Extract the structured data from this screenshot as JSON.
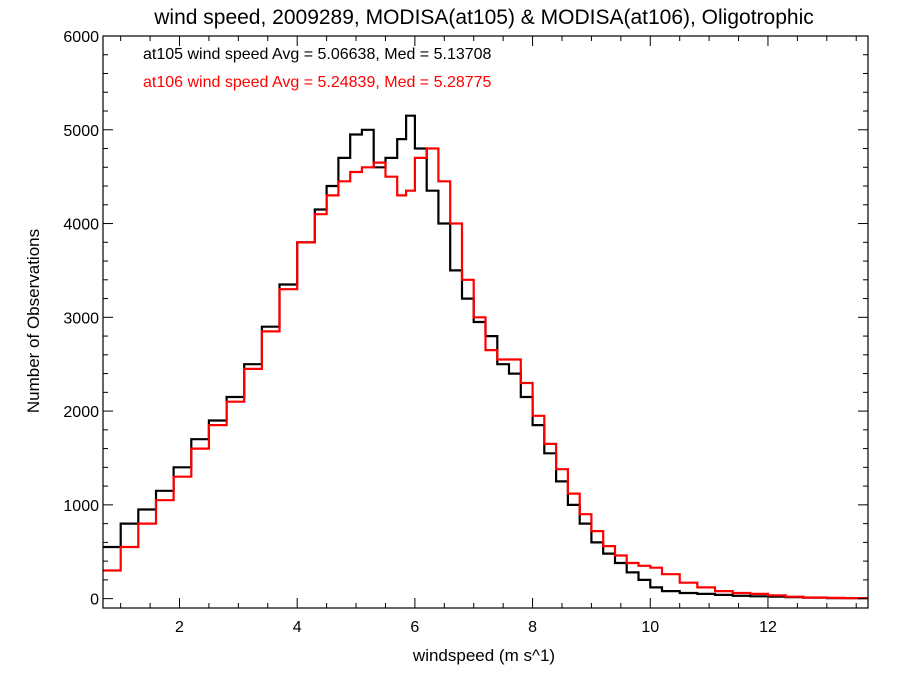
{
  "chart_data": {
    "type": "line",
    "title": "wind speed, 2009289, MODISA(at105) & MODISA(at106), Oligotrophic",
    "xlabel": "windspeed (m s^1)",
    "ylabel": "Number of Observations",
    "xlim": [
      0.7,
      13.7
    ],
    "ylim": [
      -100,
      6000
    ],
    "xticks": [
      2,
      4,
      6,
      8,
      10,
      12
    ],
    "yticks": [
      0,
      1000,
      2000,
      3000,
      4000,
      5000,
      6000
    ],
    "grid": false,
    "legend_position": "top-left",
    "annotations": [
      {
        "text": "at105 wind speed Avg = 5.06638, Med = 5.13708",
        "color": "#000000"
      },
      {
        "text": "at106 wind speed Avg = 5.24839, Med = 5.28775",
        "color": "#ff0000"
      }
    ],
    "series": [
      {
        "color": "#000000",
        "x": [
          0.7,
          1.0,
          1.3,
          1.6,
          1.9,
          2.2,
          2.5,
          2.8,
          3.1,
          3.4,
          3.7,
          4.0,
          4.3,
          4.5,
          4.7,
          4.9,
          5.1,
          5.3,
          5.5,
          5.7,
          5.85,
          6.0,
          6.2,
          6.4,
          6.6,
          6.8,
          7.0,
          7.2,
          7.4,
          7.6,
          7.8,
          8.0,
          8.2,
          8.4,
          8.6,
          8.8,
          9.0,
          9.2,
          9.4,
          9.6,
          9.8,
          10.0,
          10.2,
          10.5,
          10.8,
          11.1,
          11.4,
          11.7,
          12.0,
          12.3,
          12.6,
          13.0,
          13.3,
          13.7
        ],
        "values": [
          550,
          800,
          950,
          1150,
          1400,
          1700,
          1900,
          2150,
          2500,
          2900,
          3350,
          3800,
          4150,
          4400,
          4700,
          4950,
          5000,
          4600,
          4700,
          4900,
          5150,
          4800,
          4350,
          4000,
          3500,
          3200,
          2950,
          2800,
          2500,
          2400,
          2150,
          1850,
          1550,
          1250,
          1000,
          800,
          600,
          480,
          380,
          280,
          200,
          120,
          80,
          60,
          50,
          40,
          30,
          25,
          20,
          15,
          10,
          5,
          5,
          5
        ]
      },
      {
        "color": "#ff0000",
        "x": [
          0.7,
          1.0,
          1.3,
          1.6,
          1.9,
          2.2,
          2.5,
          2.8,
          3.1,
          3.4,
          3.7,
          4.0,
          4.3,
          4.5,
          4.7,
          4.9,
          5.1,
          5.3,
          5.5,
          5.7,
          5.85,
          6.0,
          6.2,
          6.4,
          6.6,
          6.8,
          7.0,
          7.2,
          7.4,
          7.6,
          7.8,
          8.0,
          8.2,
          8.4,
          8.6,
          8.8,
          9.0,
          9.2,
          9.4,
          9.6,
          9.8,
          10.0,
          10.2,
          10.5,
          10.8,
          11.1,
          11.4,
          11.7,
          12.0,
          12.3,
          12.6,
          13.0,
          13.3,
          13.7
        ],
        "values": [
          300,
          550,
          800,
          1050,
          1300,
          1600,
          1850,
          2100,
          2450,
          2850,
          3300,
          3800,
          4100,
          4300,
          4450,
          4550,
          4600,
          4650,
          4500,
          4300,
          4350,
          4700,
          4800,
          4450,
          4000,
          3400,
          3000,
          2650,
          2550,
          2550,
          2300,
          1950,
          1650,
          1380,
          1120,
          900,
          720,
          560,
          460,
          380,
          350,
          330,
          260,
          170,
          120,
          80,
          60,
          50,
          35,
          20,
          12,
          8,
          5,
          5
        ]
      }
    ]
  }
}
